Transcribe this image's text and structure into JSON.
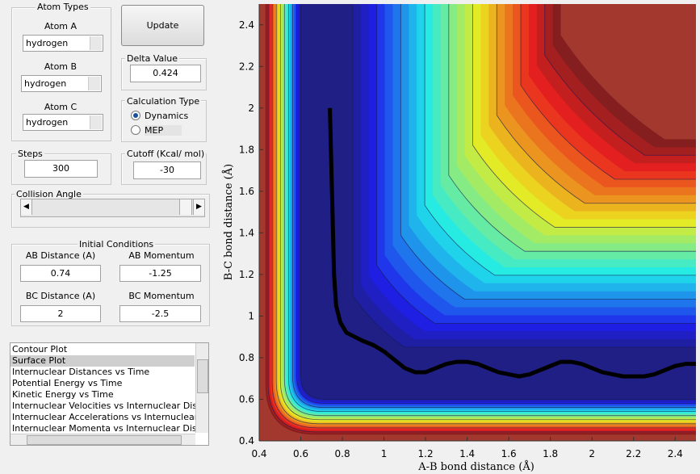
{
  "panel": {
    "atom_types": {
      "title": "Atom Types",
      "fields": [
        {
          "label": "Atom A",
          "value": "hydrogen"
        },
        {
          "label": "Atom B",
          "value": "hydrogen"
        },
        {
          "label": "Atom C",
          "value": "hydrogen"
        }
      ]
    },
    "update_button": "Update",
    "delta": {
      "title": "Delta Value",
      "value": "0.424"
    },
    "calculation_type": {
      "title": "Calculation Type",
      "options": [
        "Dynamics",
        "MEP"
      ]
    },
    "steps": {
      "title": "Steps",
      "value": "300"
    },
    "cutoff": {
      "title": "Cutoff (Kcal/ mol)",
      "value": "-30"
    },
    "collision_angle": {
      "title": "Collision Angle"
    },
    "initial_conditions": {
      "title": "Initial Conditions",
      "fields": [
        {
          "label": "AB Distance (A)",
          "value": "0.74"
        },
        {
          "label": "AB Momentum",
          "value": "-1.25"
        },
        {
          "label": "BC Distance (A)",
          "value": "2"
        },
        {
          "label": "BC Momentum",
          "value": "-2.5"
        }
      ]
    },
    "plot_list": [
      "Contour Plot",
      "Surface Plot",
      "Internuclear Distances vs Time",
      "Potential Energy vs Time",
      "Kinetic Energy vs Time",
      "Internuclear Velocities vs Internuclear Distances",
      "Internuclear Accelerations vs Internuclear Distances",
      "Internuclear Momenta vs Internuclear Distances"
    ]
  },
  "chart_data": {
    "type": "line",
    "x_label": "A-B bond distance (Å)",
    "y_label": "B-C bond distance (Å)",
    "x": [
      0.74,
      0.745,
      0.75,
      0.755,
      0.76,
      0.77,
      0.79,
      0.82,
      0.86,
      0.9,
      0.95,
      1.0,
      1.05,
      1.1,
      1.15,
      1.2,
      1.25,
      1.3,
      1.35,
      1.4,
      1.45,
      1.5,
      1.55,
      1.6,
      1.65,
      1.7,
      1.75,
      1.8,
      1.85,
      1.9,
      1.95,
      2.0,
      2.05,
      2.1,
      2.15,
      2.2,
      2.25,
      2.3,
      2.35,
      2.4,
      2.45,
      2.5
    ],
    "values": [
      2.0,
      1.8,
      1.6,
      1.4,
      1.2,
      1.05,
      0.97,
      0.92,
      0.9,
      0.88,
      0.86,
      0.83,
      0.79,
      0.75,
      0.73,
      0.73,
      0.75,
      0.77,
      0.78,
      0.78,
      0.77,
      0.75,
      0.73,
      0.72,
      0.71,
      0.72,
      0.74,
      0.76,
      0.78,
      0.78,
      0.77,
      0.75,
      0.73,
      0.72,
      0.71,
      0.71,
      0.71,
      0.72,
      0.74,
      0.76,
      0.77,
      0.77
    ],
    "color": "#000000",
    "xlim": [
      0.4,
      2.5
    ],
    "ylim": [
      0.4,
      2.5
    ],
    "xticks": [
      0.4,
      0.6,
      0.8,
      1,
      1.2,
      1.4,
      1.6,
      1.8,
      2,
      2.2,
      2.4
    ],
    "yticks": [
      0.4,
      0.6,
      0.8,
      1,
      1.2,
      1.4,
      1.6,
      1.8,
      2,
      2.2,
      2.4
    ]
  }
}
